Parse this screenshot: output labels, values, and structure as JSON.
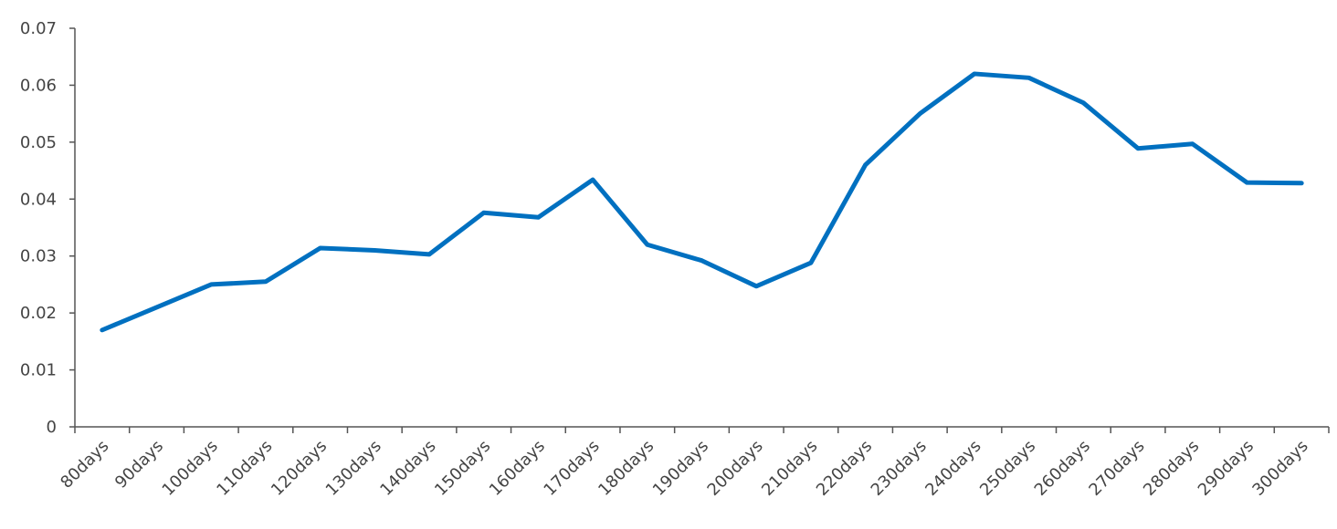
{
  "chart_data": {
    "type": "line",
    "categories": [
      "80days",
      "90days",
      "100days",
      "110days",
      "120days",
      "130days",
      "140days",
      "150days",
      "160days",
      "170days",
      "180days",
      "190days",
      "200days",
      "210days",
      "220days",
      "230days",
      "240days",
      "250days",
      "260days",
      "270days",
      "280days",
      "290days",
      "300days"
    ],
    "values": [
      0.017,
      0.021,
      0.025,
      0.0255,
      0.0314,
      0.031,
      0.0303,
      0.0376,
      0.0368,
      0.0434,
      0.032,
      0.0292,
      0.0247,
      0.0288,
      0.046,
      0.055,
      0.062,
      0.0613,
      0.0569,
      0.0489,
      0.0497,
      0.0429,
      0.0428
    ],
    "color": "#0070c0",
    "ylim": [
      0,
      0.07
    ],
    "yticks": [
      0,
      0.01,
      0.02,
      0.03,
      0.04,
      0.05,
      0.06,
      0.07
    ],
    "grid": false
  }
}
